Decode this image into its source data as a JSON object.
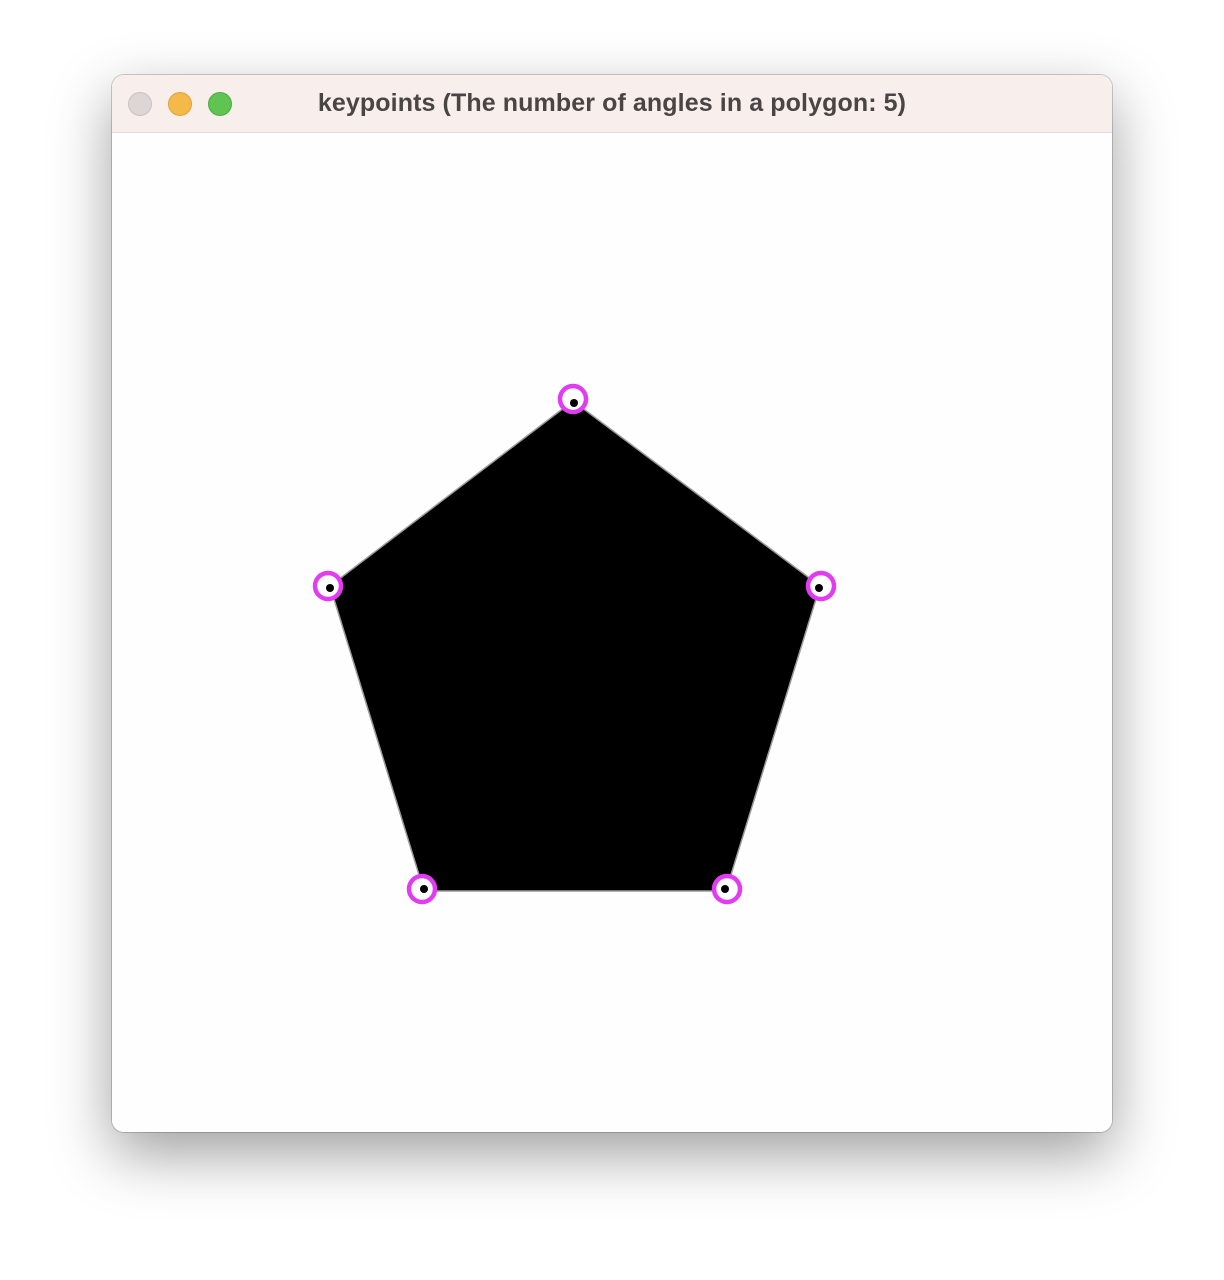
{
  "window": {
    "title": "keypoints (The number of angles in a polygon: 5)",
    "traffic_lights": [
      "close",
      "minimize",
      "zoom"
    ]
  },
  "canvas": {
    "shape": "pentagon",
    "fill_color": "#000000",
    "keypoint_color": "#e23cf2",
    "angle_count": 5
  },
  "colors": {
    "titlebar": "#f8efec",
    "title_text": "#4a4545",
    "background": "#fefefe"
  }
}
